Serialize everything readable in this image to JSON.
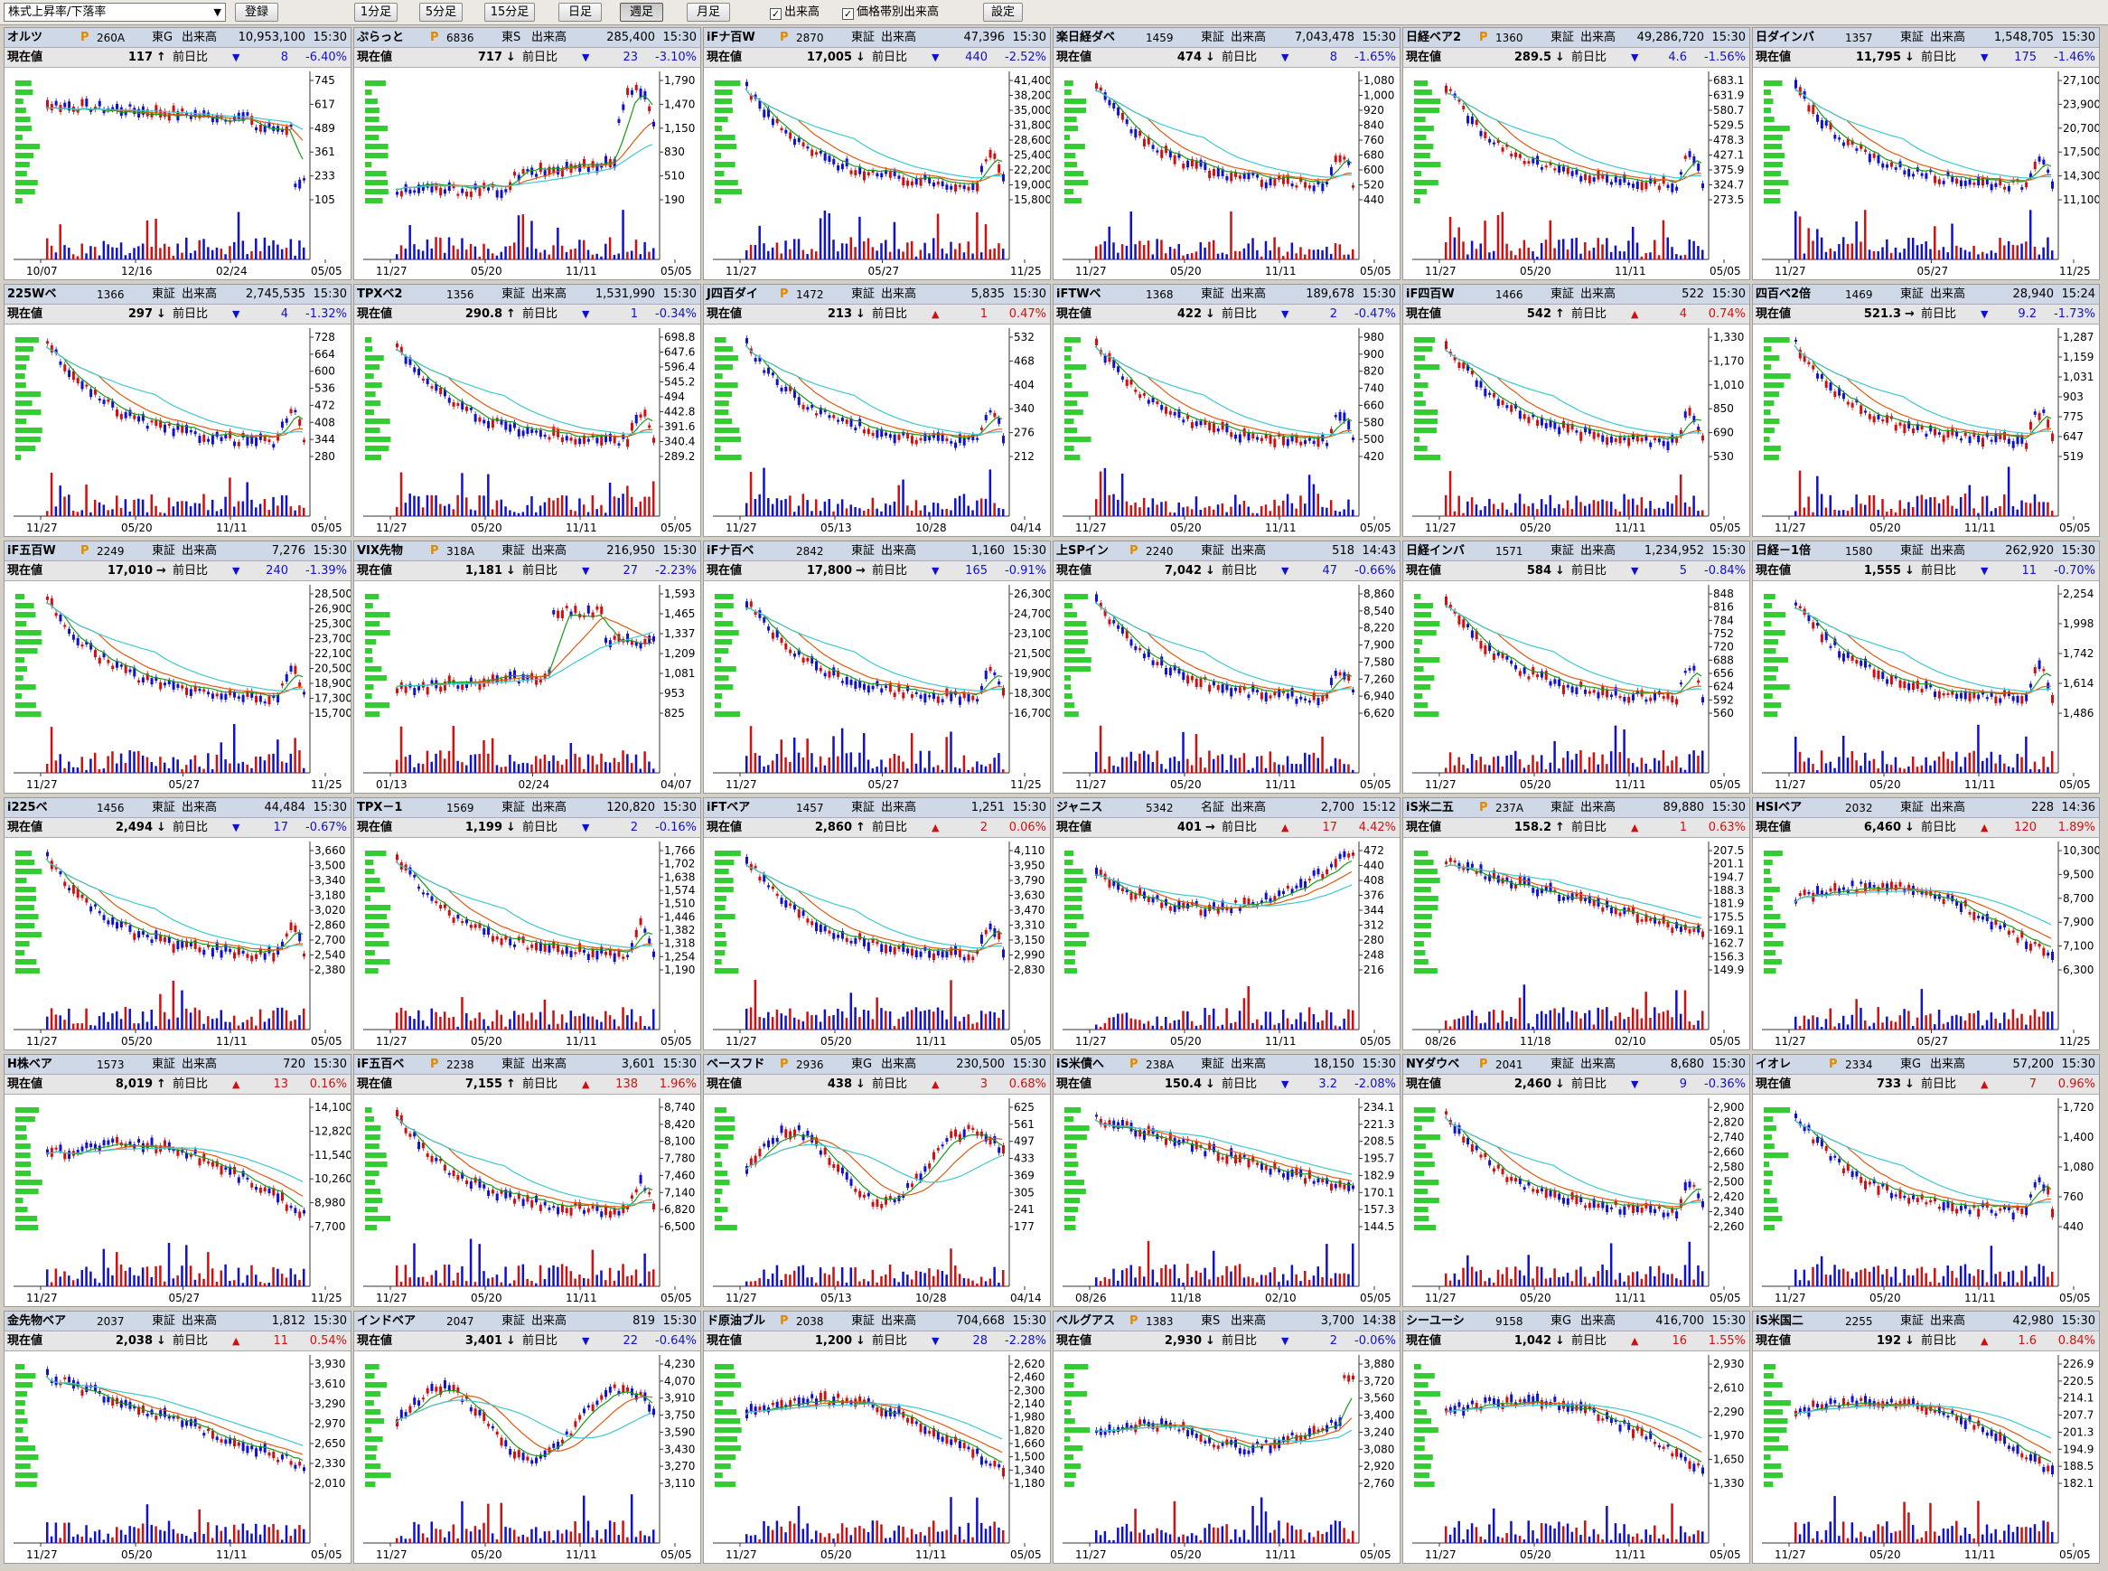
{
  "toolbar": {
    "select": "株式上昇率/下落率",
    "register": "登録",
    "b1m": "1分足",
    "b5m": "5分足",
    "b15m": "15分足",
    "bday": "日足",
    "bweek": "週足",
    "bmonth": "月足",
    "chk_vol": "出来高",
    "chk_pvol": "価格帯別出来高",
    "settings": "設定",
    "check_mark": "✓"
  },
  "labels": {
    "exchange_vol": "出来高",
    "current": "現在値",
    "prev_diff": "前日比"
  },
  "accent": {
    "up": "#d01010",
    "down": "#1010d0",
    "ma_short": "#1a9a1a",
    "ma_mid": "#e05a10",
    "ma_long": "#3ec8d0",
    "header_bg": "#cfd8e6"
  },
  "panels": [
    {
      "name": "オルツ",
      "p": true,
      "code": "260A",
      "exch": "東G",
      "volume": "10,953,100",
      "time": "15:30",
      "price": "117",
      "arrow": "↑",
      "dir": "down",
      "change": "8",
      "pct": "-6.40%",
      "yt": [
        "745",
        "617",
        "489",
        "361",
        "233",
        "105"
      ],
      "xt": [
        "10/07",
        "12/16",
        "02/24",
        "05/05"
      ],
      "trend": "crash"
    },
    {
      "name": "ぷらっと",
      "p": true,
      "code": "6836",
      "exch": "東S",
      "volume": "285,400",
      "time": "15:30",
      "price": "717",
      "arrow": "↓",
      "dir": "down",
      "change": "23",
      "pct": "-3.10%",
      "yt": [
        "1,790",
        "1,470",
        "1,150",
        "830",
        "510",
        "190"
      ],
      "xt": [
        "11/27",
        "05/20",
        "11/11",
        "05/05"
      ],
      "trend": "spike"
    },
    {
      "name": "iFナ百W",
      "p": true,
      "code": "2870",
      "exch": "東証",
      "volume": "47,396",
      "time": "15:30",
      "price": "17,005",
      "arrow": "↓",
      "dir": "down",
      "change": "440",
      "pct": "-2.52%",
      "yt": [
        "41,400",
        "38,200",
        "35,000",
        "31,800",
        "28,600",
        "25,400",
        "22,200",
        "19,000",
        "15,800"
      ],
      "xt": [
        "11/27",
        "05/27",
        "11/25"
      ],
      "trend": "decay"
    },
    {
      "name": "楽日経ダベ",
      "p": false,
      "code": "1459",
      "exch": "東証",
      "volume": "7,043,478",
      "time": "15:30",
      "price": "474",
      "arrow": "↓",
      "dir": "down",
      "change": "8",
      "pct": "-1.65%",
      "yt": [
        "1,080",
        "1,000",
        "920",
        "840",
        "760",
        "680",
        "600",
        "520",
        "440"
      ],
      "xt": [
        "11/27",
        "05/20",
        "11/11",
        "05/05"
      ],
      "trend": "decay"
    },
    {
      "name": "日経ベア2",
      "p": true,
      "code": "1360",
      "exch": "東証",
      "volume": "49,286,720",
      "time": "15:30",
      "price": "289.5",
      "arrow": "↓",
      "dir": "down",
      "change": "4.6",
      "pct": "-1.56%",
      "yt": [
        "683.1",
        "631.9",
        "580.7",
        "529.5",
        "478.3",
        "427.1",
        "375.9",
        "324.7",
        "273.5"
      ],
      "xt": [
        "11/27",
        "05/20",
        "11/11",
        "05/05"
      ],
      "trend": "decay"
    },
    {
      "name": "日ダインバ",
      "p": false,
      "code": "1357",
      "exch": "東証",
      "volume": "1,548,705",
      "time": "15:30",
      "price": "11,795",
      "arrow": "↓",
      "dir": "down",
      "change": "175",
      "pct": "-1.46%",
      "yt": [
        "27,100",
        "23,900",
        "20,700",
        "17,500",
        "14,300",
        "11,100"
      ],
      "xt": [
        "11/27",
        "05/27",
        "11/25"
      ],
      "trend": "decay"
    },
    {
      "name": "225Wベ",
      "p": false,
      "code": "1366",
      "exch": "東証",
      "volume": "2,745,535",
      "time": "15:30",
      "price": "297",
      "arrow": "↓",
      "dir": "down",
      "change": "4",
      "pct": "-1.32%",
      "yt": [
        "728",
        "664",
        "600",
        "536",
        "472",
        "408",
        "344",
        "280"
      ],
      "xt": [
        "11/27",
        "05/20",
        "11/11",
        "05/05"
      ],
      "trend": "decay"
    },
    {
      "name": "TPXベ2",
      "p": false,
      "code": "1356",
      "exch": "東証",
      "volume": "1,531,990",
      "time": "15:30",
      "price": "290.8",
      "arrow": "↑",
      "dir": "down",
      "change": "1",
      "pct": "-0.34%",
      "yt": [
        "698.8",
        "647.6",
        "596.4",
        "545.2",
        "494",
        "442.8",
        "391.6",
        "340.4",
        "289.2"
      ],
      "xt": [
        "11/27",
        "05/20",
        "11/11",
        "05/05"
      ],
      "trend": "decay"
    },
    {
      "name": "J四百ダイ",
      "p": true,
      "code": "1472",
      "exch": "東証",
      "volume": "5,835",
      "time": "15:30",
      "price": "213",
      "arrow": "↓",
      "dir": "up",
      "change": "1",
      "pct": "0.47%",
      "yt": [
        "532",
        "468",
        "404",
        "340",
        "276",
        "212"
      ],
      "xt": [
        "11/27",
        "05/13",
        "10/28",
        "04/14"
      ],
      "trend": "decay"
    },
    {
      "name": "iFTWベ",
      "p": false,
      "code": "1368",
      "exch": "東証",
      "volume": "189,678",
      "time": "15:30",
      "price": "422",
      "arrow": "↓",
      "dir": "down",
      "change": "2",
      "pct": "-0.47%",
      "yt": [
        "980",
        "900",
        "820",
        "740",
        "660",
        "580",
        "500",
        "420"
      ],
      "xt": [
        "11/27",
        "05/20",
        "11/11",
        "05/05"
      ],
      "trend": "decay"
    },
    {
      "name": "iF四百W",
      "p": false,
      "code": "1466",
      "exch": "東証",
      "volume": "522",
      "time": "15:30",
      "price": "542",
      "arrow": "↑",
      "dir": "up",
      "change": "4",
      "pct": "0.74%",
      "yt": [
        "1,330",
        "1,170",
        "1,010",
        "850",
        "690",
        "530"
      ],
      "xt": [
        "11/27",
        "05/20",
        "11/11",
        "05/05"
      ],
      "trend": "decay"
    },
    {
      "name": "四百ベ2倍",
      "p": false,
      "code": "1469",
      "exch": "東証",
      "volume": "28,940",
      "time": "15:24",
      "price": "521.3",
      "arrow": "→",
      "dir": "down",
      "change": "9.2",
      "pct": "-1.73%",
      "yt": [
        "1,287",
        "1,159",
        "1,031",
        "903",
        "775",
        "647",
        "519"
      ],
      "xt": [
        "11/27",
        "05/20",
        "11/11",
        "05/05"
      ],
      "trend": "decay"
    },
    {
      "name": "iF五百W",
      "p": true,
      "code": "2249",
      "exch": "東証",
      "volume": "7,276",
      "time": "15:30",
      "price": "17,010",
      "arrow": "→",
      "dir": "down",
      "change": "240",
      "pct": "-1.39%",
      "yt": [
        "28,500",
        "26,900",
        "25,300",
        "23,700",
        "22,100",
        "20,500",
        "18,900",
        "17,300",
        "15,700"
      ],
      "xt": [
        "11/27",
        "05/27",
        "11/25"
      ],
      "trend": "decay"
    },
    {
      "name": "VIX先物",
      "p": true,
      "code": "318A",
      "exch": "東証",
      "volume": "216,950",
      "time": "15:30",
      "price": "1,181",
      "arrow": "↓",
      "dir": "down",
      "change": "27",
      "pct": "-2.23%",
      "yt": [
        "1,593",
        "1,465",
        "1,337",
        "1,209",
        "1,081",
        "953",
        "825"
      ],
      "xt": [
        "01/13",
        "02/24",
        "04/07"
      ],
      "trend": "vix"
    },
    {
      "name": "iFナ百ベ",
      "p": false,
      "code": "2842",
      "exch": "東証",
      "volume": "1,160",
      "time": "15:30",
      "price": "17,800",
      "arrow": "→",
      "dir": "down",
      "change": "165",
      "pct": "-0.91%",
      "yt": [
        "26,300",
        "24,700",
        "23,100",
        "21,500",
        "19,900",
        "18,300",
        "16,700"
      ],
      "xt": [
        "11/27",
        "05/27",
        "11/25"
      ],
      "trend": "decay"
    },
    {
      "name": "上SPイン",
      "p": true,
      "code": "2240",
      "exch": "東証",
      "volume": "518",
      "time": "14:43",
      "price": "7,042",
      "arrow": "↓",
      "dir": "down",
      "change": "47",
      "pct": "-0.66%",
      "yt": [
        "8,860",
        "8,540",
        "8,220",
        "7,900",
        "7,580",
        "7,260",
        "6,940",
        "6,620"
      ],
      "xt": [
        "11/27",
        "05/20",
        "11/11",
        "05/05"
      ],
      "trend": "decay"
    },
    {
      "name": "日経インバ",
      "p": false,
      "code": "1571",
      "exch": "東証",
      "volume": "1,234,952",
      "time": "15:30",
      "price": "584",
      "arrow": "↓",
      "dir": "down",
      "change": "5",
      "pct": "-0.84%",
      "yt": [
        "848",
        "816",
        "784",
        "752",
        "720",
        "688",
        "656",
        "624",
        "592",
        "560"
      ],
      "xt": [
        "11/27",
        "05/20",
        "11/11",
        "05/05"
      ],
      "trend": "decay"
    },
    {
      "name": "日経－1倍",
      "p": false,
      "code": "1580",
      "exch": "東証",
      "volume": "262,920",
      "time": "15:30",
      "price": "1,555",
      "arrow": "↓",
      "dir": "down",
      "change": "11",
      "pct": "-0.70%",
      "yt": [
        "2,254",
        "1,998",
        "1,742",
        "1,614",
        "1,486"
      ],
      "xt": [
        "11/27",
        "05/20",
        "11/11",
        "05/05"
      ],
      "trend": "decay"
    },
    {
      "name": "i225ベ",
      "p": false,
      "code": "1456",
      "exch": "東証",
      "volume": "44,484",
      "time": "15:30",
      "price": "2,494",
      "arrow": "↓",
      "dir": "down",
      "change": "17",
      "pct": "-0.67%",
      "yt": [
        "3,660",
        "3,500",
        "3,340",
        "3,180",
        "3,020",
        "2,860",
        "2,700",
        "2,540",
        "2,380"
      ],
      "xt": [
        "11/27",
        "05/20",
        "11/11",
        "05/05"
      ],
      "trend": "decay"
    },
    {
      "name": "TPX－1",
      "p": false,
      "code": "1569",
      "exch": "東証",
      "volume": "120,820",
      "time": "15:30",
      "price": "1,199",
      "arrow": "↓",
      "dir": "down",
      "change": "2",
      "pct": "-0.16%",
      "yt": [
        "1,766",
        "1,702",
        "1,638",
        "1,574",
        "1,510",
        "1,446",
        "1,382",
        "1,318",
        "1,254",
        "1,190"
      ],
      "xt": [
        "11/27",
        "05/20",
        "11/11",
        "05/05"
      ],
      "trend": "decay"
    },
    {
      "name": "iFTベア",
      "p": false,
      "code": "1457",
      "exch": "東証",
      "volume": "1,251",
      "time": "15:30",
      "price": "2,860",
      "arrow": "↑",
      "dir": "up",
      "change": "2",
      "pct": "0.06%",
      "yt": [
        "4,110",
        "3,950",
        "3,790",
        "3,630",
        "3,470",
        "3,310",
        "3,150",
        "2,990",
        "2,830"
      ],
      "xt": [
        "11/27",
        "05/20",
        "11/11",
        "05/05"
      ],
      "trend": "decay"
    },
    {
      "name": "ジャニス",
      "p": false,
      "code": "5342",
      "exch": "名証",
      "volume": "2,700",
      "time": "15:12",
      "price": "401",
      "arrow": "→",
      "dir": "up",
      "change": "17",
      "pct": "4.42%",
      "yt": [
        "472",
        "440",
        "408",
        "376",
        "344",
        "312",
        "280",
        "248",
        "216"
      ],
      "xt": [
        "11/27",
        "05/20",
        "11/11",
        "05/05"
      ],
      "trend": "vshape"
    },
    {
      "name": "iS米二五",
      "p": true,
      "code": "237A",
      "exch": "東証",
      "volume": "89,880",
      "time": "15:30",
      "price": "158.2",
      "arrow": "↑",
      "dir": "up",
      "change": "1",
      "pct": "0.63%",
      "yt": [
        "207.5",
        "201.1",
        "194.7",
        "188.3",
        "181.9",
        "175.5",
        "169.1",
        "162.7",
        "156.3",
        "149.9"
      ],
      "xt": [
        "08/26",
        "11/18",
        "02/10",
        "05/05"
      ],
      "trend": "sparse"
    },
    {
      "name": "HSIベア",
      "p": false,
      "code": "2032",
      "exch": "東証",
      "volume": "228",
      "time": "14:36",
      "price": "6,460",
      "arrow": "↓",
      "dir": "up",
      "change": "120",
      "pct": "1.89%",
      "yt": [
        "10,300",
        "9,500",
        "8,700",
        "7,900",
        "7,100",
        "6,300"
      ],
      "xt": [
        "11/27",
        "05/27",
        "11/25"
      ],
      "trend": "hump"
    },
    {
      "name": "H株ベア",
      "p": false,
      "code": "1573",
      "exch": "東証",
      "volume": "720",
      "time": "15:30",
      "price": "8,019",
      "arrow": "↑",
      "dir": "up",
      "change": "13",
      "pct": "0.16%",
      "yt": [
        "14,100",
        "12,820",
        "11,540",
        "10,260",
        "8,980",
        "7,700"
      ],
      "xt": [
        "11/27",
        "05/27",
        "11/25"
      ],
      "trend": "hump"
    },
    {
      "name": "iF五百ベ",
      "p": true,
      "code": "2238",
      "exch": "東証",
      "volume": "3,601",
      "time": "15:30",
      "price": "7,155",
      "arrow": "↑",
      "dir": "up",
      "change": "138",
      "pct": "1.96%",
      "yt": [
        "8,740",
        "8,420",
        "8,100",
        "7,780",
        "7,460",
        "7,140",
        "6,820",
        "6,500"
      ],
      "xt": [
        "11/27",
        "05/20",
        "11/11",
        "05/05"
      ],
      "trend": "decay"
    },
    {
      "name": "ベースフド",
      "p": true,
      "code": "2936",
      "exch": "東G",
      "volume": "230,500",
      "time": "15:30",
      "price": "438",
      "arrow": "↓",
      "dir": "up",
      "change": "3",
      "pct": "0.68%",
      "yt": [
        "625",
        "561",
        "497",
        "433",
        "369",
        "305",
        "241",
        "177"
      ],
      "xt": [
        "11/27",
        "05/13",
        "10/28",
        "04/14"
      ],
      "trend": "wave"
    },
    {
      "name": "iS米債へ",
      "p": true,
      "code": "238A",
      "exch": "東証",
      "volume": "18,150",
      "time": "15:30",
      "price": "150.4",
      "arrow": "↓",
      "dir": "down",
      "change": "3.2",
      "pct": "-2.08%",
      "yt": [
        "234.1",
        "221.3",
        "208.5",
        "195.7",
        "182.9",
        "170.1",
        "157.3",
        "144.5"
      ],
      "xt": [
        "08/26",
        "11/18",
        "02/10",
        "05/05"
      ],
      "trend": "sparse"
    },
    {
      "name": "NYダウベ",
      "p": true,
      "code": "2041",
      "exch": "東証",
      "volume": "8,680",
      "time": "15:30",
      "price": "2,460",
      "arrow": "↓",
      "dir": "down",
      "change": "9",
      "pct": "-0.36%",
      "yt": [
        "2,900",
        "2,820",
        "2,740",
        "2,660",
        "2,580",
        "2,500",
        "2,420",
        "2,340",
        "2,260"
      ],
      "xt": [
        "11/27",
        "05/20",
        "11/11",
        "05/05"
      ],
      "trend": "decay"
    },
    {
      "name": "イオレ",
      "p": true,
      "code": "2334",
      "exch": "東G",
      "volume": "57,200",
      "time": "15:30",
      "price": "733",
      "arrow": "↓",
      "dir": "up",
      "change": "7",
      "pct": "0.96%",
      "yt": [
        "1,720",
        "1,400",
        "1,080",
        "760",
        "440"
      ],
      "xt": [
        "11/27",
        "05/20",
        "11/11",
        "05/05"
      ],
      "trend": "decay"
    },
    {
      "name": "金先物ベア",
      "p": false,
      "code": "2037",
      "exch": "東証",
      "volume": "1,812",
      "time": "15:30",
      "price": "2,038",
      "arrow": "↓",
      "dir": "up",
      "change": "11",
      "pct": "0.54%",
      "yt": [
        "3,930",
        "3,610",
        "3,290",
        "2,970",
        "2,650",
        "2,330",
        "2,010"
      ],
      "xt": [
        "11/27",
        "05/20",
        "11/11",
        "05/05"
      ],
      "trend": "decline"
    },
    {
      "name": "インドベア",
      "p": false,
      "code": "2047",
      "exch": "東証",
      "volume": "819",
      "time": "15:30",
      "price": "3,401",
      "arrow": "↓",
      "dir": "down",
      "change": "22",
      "pct": "-0.64%",
      "yt": [
        "4,230",
        "4,070",
        "3,910",
        "3,750",
        "3,590",
        "3,430",
        "3,270",
        "3,110"
      ],
      "xt": [
        "11/27",
        "05/20",
        "11/11",
        "05/05"
      ],
      "trend": "wave"
    },
    {
      "name": "ド原油ブル",
      "p": true,
      "code": "2038",
      "exch": "東証",
      "volume": "704,668",
      "time": "15:30",
      "price": "1,200",
      "arrow": "↓",
      "dir": "down",
      "change": "28",
      "pct": "-2.28%",
      "yt": [
        "2,620",
        "2,460",
        "2,300",
        "2,140",
        "1,980",
        "1,820",
        "1,660",
        "1,500",
        "1,340",
        "1,180"
      ],
      "xt": [
        "11/27",
        "05/20",
        "11/11",
        "05/05"
      ],
      "trend": "hump"
    },
    {
      "name": "ベルグアス",
      "p": true,
      "code": "1383",
      "exch": "東S",
      "volume": "3,700",
      "time": "14:38",
      "price": "2,930",
      "arrow": "↓",
      "dir": "down",
      "change": "2",
      "pct": "-0.06%",
      "yt": [
        "3,880",
        "3,720",
        "3,560",
        "3,400",
        "3,240",
        "3,080",
        "2,920",
        "2,760"
      ],
      "xt": [
        "11/27",
        "05/20",
        "11/11",
        "05/05"
      ],
      "trend": "flat"
    },
    {
      "name": "シーユーシ",
      "p": false,
      "code": "9158",
      "exch": "東G",
      "volume": "416,700",
      "time": "15:30",
      "price": "1,042",
      "arrow": "↓",
      "dir": "up",
      "change": "16",
      "pct": "1.55%",
      "yt": [
        "2,930",
        "2,610",
        "2,290",
        "1,970",
        "1,650",
        "1,330"
      ],
      "xt": [
        "11/27",
        "05/20",
        "11/11",
        "05/05"
      ],
      "trend": "hump"
    },
    {
      "name": "iS米国二",
      "p": false,
      "code": "2255",
      "exch": "東証",
      "volume": "42,980",
      "time": "15:30",
      "price": "192",
      "arrow": "↓",
      "dir": "up",
      "change": "1.6",
      "pct": "0.84%",
      "yt": [
        "226.9",
        "220.5",
        "214.1",
        "207.7",
        "201.3",
        "194.9",
        "188.5",
        "182.1"
      ],
      "xt": [
        "11/27",
        "05/20",
        "11/11",
        "05/05"
      ],
      "trend": "hump"
    }
  ]
}
